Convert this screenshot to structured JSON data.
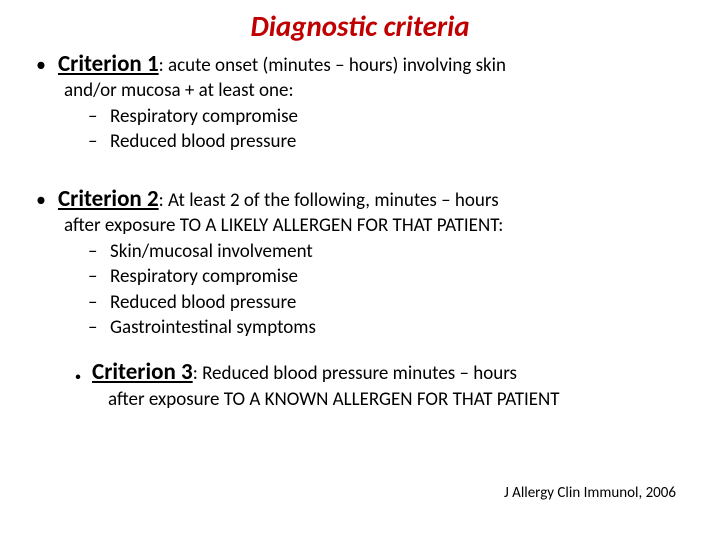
{
  "title": "Diagnostic criteria",
  "c1": {
    "label": "Criterion 1",
    "text": ": acute onset (minutes – hours) involving skin",
    "sub": "and/or mucosa + at least one:",
    "items": [
      "Respiratory compromise",
      "Reduced blood pressure"
    ]
  },
  "c2": {
    "label": "Criterion 2",
    "text": ": At least 2 of the following, minutes – hours",
    "sub": "after exposure TO A LIKELY ALLERGEN FOR THAT PATIENT:",
    "items": [
      "Skin/mucosal involvement",
      "Respiratory compromise",
      "Reduced blood pressure",
      "Gastrointestinal symptoms"
    ]
  },
  "c3": {
    "label": "Criterion 3",
    "text": ": Reduced blood pressure minutes – hours",
    "sub": "after exposure TO A KNOWN ALLERGEN FOR THAT PATIENT"
  },
  "citation": "J Allergy Clin Immunol, 2006",
  "colors": {
    "title": "#c00000",
    "text": "#000000",
    "background": "#ffffff"
  },
  "fonts": {
    "title_size": 29,
    "label_size": 23,
    "body_size": 19,
    "citation_size": 15
  }
}
